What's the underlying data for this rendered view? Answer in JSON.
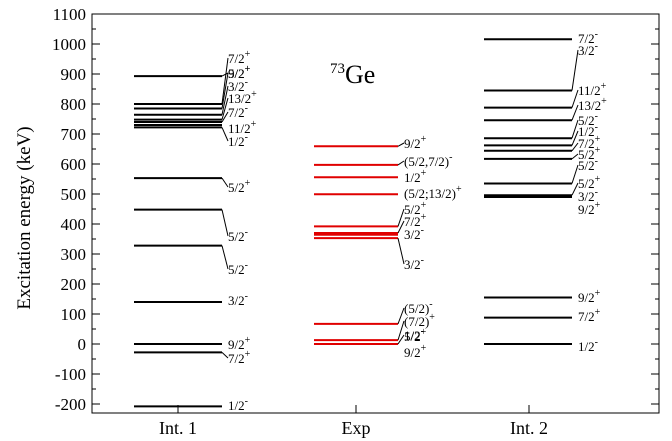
{
  "chart_data": {
    "type": "level-scheme",
    "title": "73Ge",
    "title_mass": "73",
    "title_element": "Ge",
    "ylabel": "Excitation energy (keV)",
    "ylim": [
      -230,
      1100
    ],
    "yticks": [
      -200,
      -100,
      0,
      100,
      200,
      300,
      400,
      500,
      600,
      700,
      800,
      900,
      1000,
      1100
    ],
    "grid": false,
    "columns": [
      {
        "name": "Int. 1",
        "color": "#000000",
        "levels": [
          {
            "e": 893,
            "label": {
              "base": "9/2",
              "sup": "+"
            }
          },
          {
            "e": 800,
            "label": {
              "base": "7/2",
              "sup": "+"
            }
          },
          {
            "e": 785,
            "label": {
              "base": "5/2",
              "sup": "+"
            }
          },
          {
            "e": 764,
            "label": {
              "base": "3/2",
              "sup": "-"
            }
          },
          {
            "e": 748,
            "label": {
              "base": "13/2",
              "sup": "+"
            }
          },
          {
            "e": 740,
            "label": {
              "base": "7/2",
              "sup": "-"
            }
          },
          {
            "e": 730,
            "label": {
              "base": "11/2",
              "sup": "+"
            }
          },
          {
            "e": 722,
            "label": {
              "base": "1/2",
              "sup": "-"
            }
          },
          {
            "e": 553,
            "label": {
              "base": "5/2",
              "sup": "+"
            }
          },
          {
            "e": 448,
            "label": {
              "base": "5/2",
              "sup": "-"
            }
          },
          {
            "e": 328,
            "label": {
              "base": "5/2",
              "sup": "-"
            }
          },
          {
            "e": 140,
            "label": {
              "base": "3/2",
              "sup": "-"
            }
          },
          {
            "e": 0,
            "label": {
              "base": "9/2",
              "sup": "+"
            }
          },
          {
            "e": -28,
            "label": {
              "base": "7/2",
              "sup": "+"
            }
          },
          {
            "e": -208,
            "label": {
              "base": "1/2",
              "sup": "-"
            }
          }
        ]
      },
      {
        "name": "Exp",
        "color": "#e00000",
        "levels": [
          {
            "e": 659,
            "label": {
              "base": "9/2",
              "sup": "+"
            }
          },
          {
            "e": 597,
            "label": {
              "base": "(5/2,7/2)",
              "sup": "-"
            }
          },
          {
            "e": 556,
            "label": {
              "base": "1/2",
              "sup": "+"
            }
          },
          {
            "e": 499,
            "label": {
              "base": "(5/2;13/2)",
              "sup": "+"
            }
          },
          {
            "e": 392,
            "label": {
              "base": "5/2",
              "sup": "+"
            }
          },
          {
            "e": 370,
            "label": {
              "base": "7/2",
              "sup": "+"
            }
          },
          {
            "e": 364,
            "label": {
              "base": "3/2",
              "sup": "-"
            }
          },
          {
            "e": 353,
            "label": {
              "base": "3/2",
              "sup": "-"
            }
          },
          {
            "e": 67,
            "label": {
              "base": "(5/2)",
              "sup": "-"
            }
          },
          {
            "e": 13,
            "label": {
              "base": "(7/2)",
              "sup": "+"
            }
          },
          {
            "e": 0,
            "label": {
              "base": "1/2",
              "sup": "-"
            }
          }
        ],
        "extra_labels": [
          {
            "base": "5/2",
            "sup": "+"
          },
          {
            "base": "9/2",
            "sup": "+"
          }
        ]
      },
      {
        "name": "Int. 2",
        "color": "#000000",
        "levels": [
          {
            "e": 1016,
            "label": {
              "base": "7/2",
              "sup": "-"
            }
          },
          {
            "e": 845,
            "label": {
              "base": "3/2",
              "sup": "-"
            }
          },
          {
            "e": 788,
            "label": {
              "base": "11/2",
              "sup": "+"
            }
          },
          {
            "e": 746,
            "label": {
              "base": "13/2",
              "sup": "+"
            }
          },
          {
            "e": 686,
            "label": {
              "base": "5/2",
              "sup": "-"
            }
          },
          {
            "e": 662,
            "label": {
              "base": "1/2",
              "sup": "-"
            }
          },
          {
            "e": 644,
            "label": {
              "base": "7/2",
              "sup": "+"
            }
          },
          {
            "e": 617,
            "label": {
              "base": "5/2",
              "sup": "+"
            }
          },
          {
            "e": 535,
            "label": {
              "base": "5/2",
              "sup": "-"
            }
          },
          {
            "e": 496,
            "label": {
              "base": "5/2",
              "sup": "+"
            }
          },
          {
            "e": 490,
            "label": {
              "base": "3/2",
              "sup": "-"
            }
          },
          {
            "e": 155,
            "label": {
              "base": "9/2",
              "sup": "+"
            }
          },
          {
            "e": 88,
            "label": {
              "base": "7/2",
              "sup": "+"
            }
          },
          {
            "e": 0,
            "label": {
              "base": "1/2",
              "sup": "-"
            }
          }
        ],
        "extra_labels": [
          {
            "base": "9/2",
            "sup": "+"
          }
        ]
      }
    ]
  }
}
